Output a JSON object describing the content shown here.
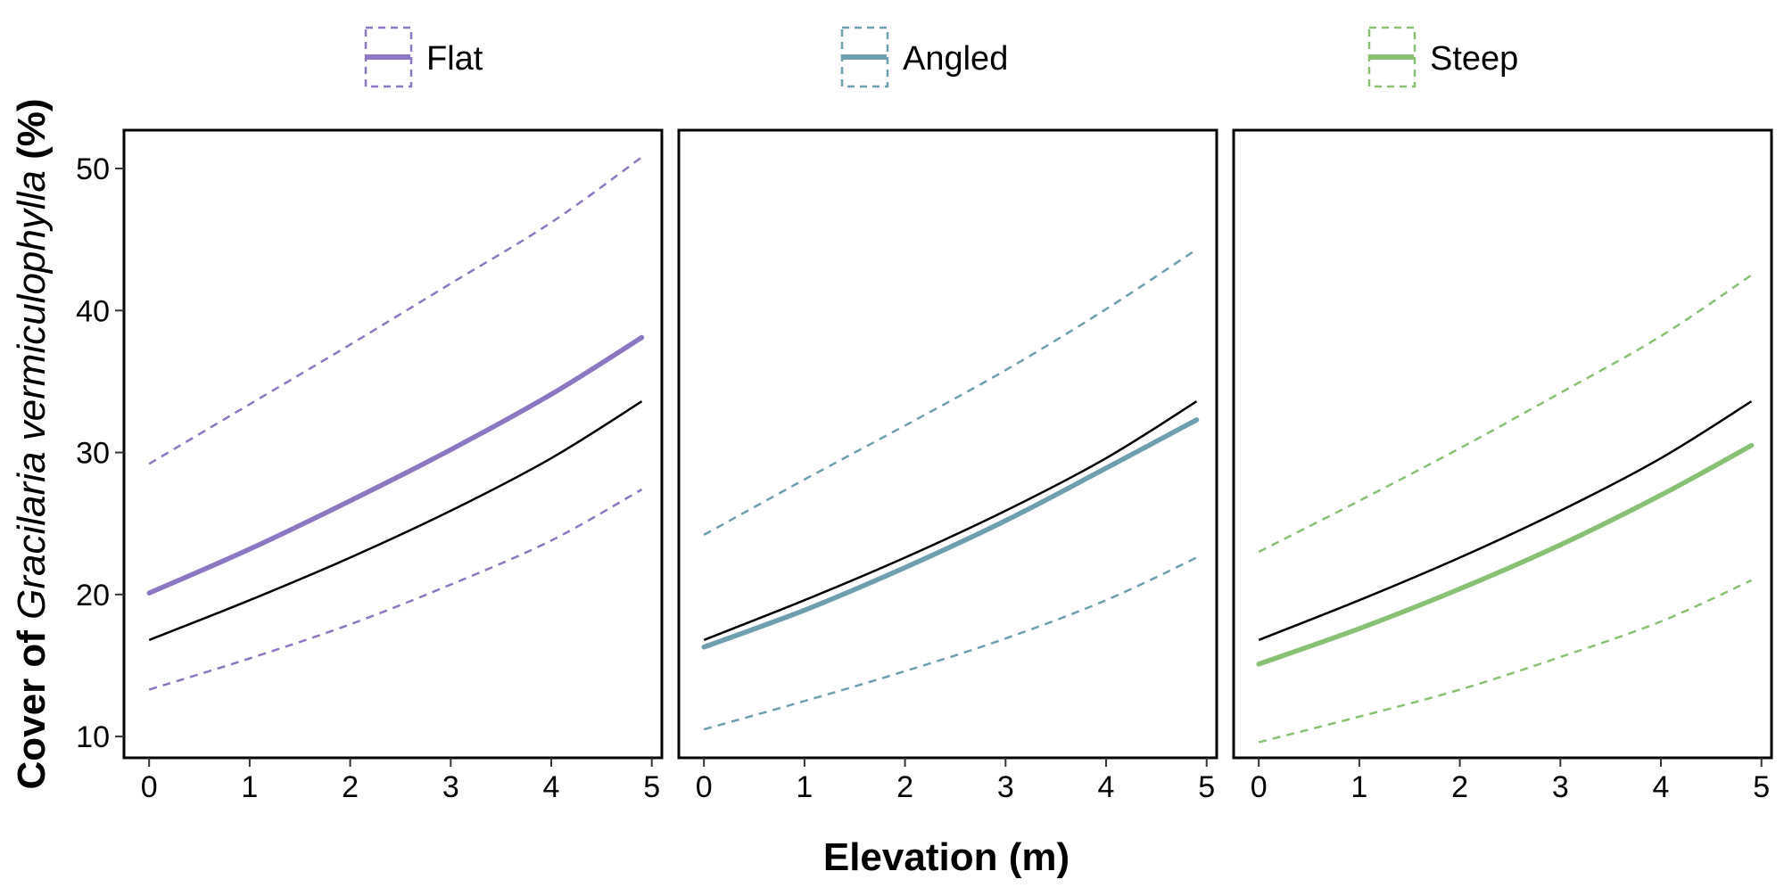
{
  "chart_data": {
    "type": "line",
    "layout": "facets",
    "xlabel": "Elevation (m)",
    "ylabel_parts": [
      {
        "text": "Cover of ",
        "italic": false
      },
      {
        "text": "Gracilaria vermiculophylla",
        "italic": true
      },
      {
        "text": " (%)",
        "italic": false
      }
    ],
    "xlim": [
      -0.25,
      5.1
    ],
    "ylim": [
      8.5,
      52.7
    ],
    "xticks": [
      0,
      1,
      2,
      3,
      4,
      5
    ],
    "yticks": [
      10,
      20,
      30,
      40,
      50
    ],
    "grid": false,
    "legend_position": "top",
    "reference_line": {
      "color": "#000000",
      "x": [
        0,
        1,
        2,
        3,
        4,
        4.9
      ],
      "y": [
        16.8,
        19.6,
        22.6,
        25.9,
        29.6,
        33.6
      ]
    },
    "panels": [
      {
        "name": "Flat",
        "color": "#8C77C3",
        "x": [
          0,
          1,
          2,
          3,
          4,
          4.9
        ],
        "fit": [
          20.1,
          23.2,
          26.6,
          30.2,
          34.1,
          38.1
        ],
        "upper": [
          29.2,
          33.4,
          37.6,
          41.9,
          46.2,
          50.8
        ],
        "lower": [
          13.3,
          15.5,
          17.9,
          20.7,
          23.8,
          27.4
        ]
      },
      {
        "name": "Angled",
        "color": "#6E9FAF",
        "x": [
          0,
          1,
          2,
          3,
          4,
          4.9
        ],
        "fit": [
          16.3,
          18.9,
          21.9,
          25.2,
          28.9,
          32.3
        ],
        "upper": [
          24.2,
          28.1,
          31.9,
          35.8,
          40.1,
          44.3
        ],
        "lower": [
          10.5,
          12.5,
          14.6,
          16.9,
          19.6,
          22.6
        ]
      },
      {
        "name": "Steep",
        "color": "#88C174",
        "x": [
          0,
          1,
          2,
          3,
          4,
          4.9
        ],
        "fit": [
          15.1,
          17.6,
          20.4,
          23.5,
          27.0,
          30.5
        ],
        "upper": [
          23.0,
          26.6,
          30.3,
          34.2,
          38.2,
          42.5
        ],
        "lower": [
          9.6,
          11.4,
          13.3,
          15.6,
          18.1,
          21.0
        ]
      }
    ]
  }
}
